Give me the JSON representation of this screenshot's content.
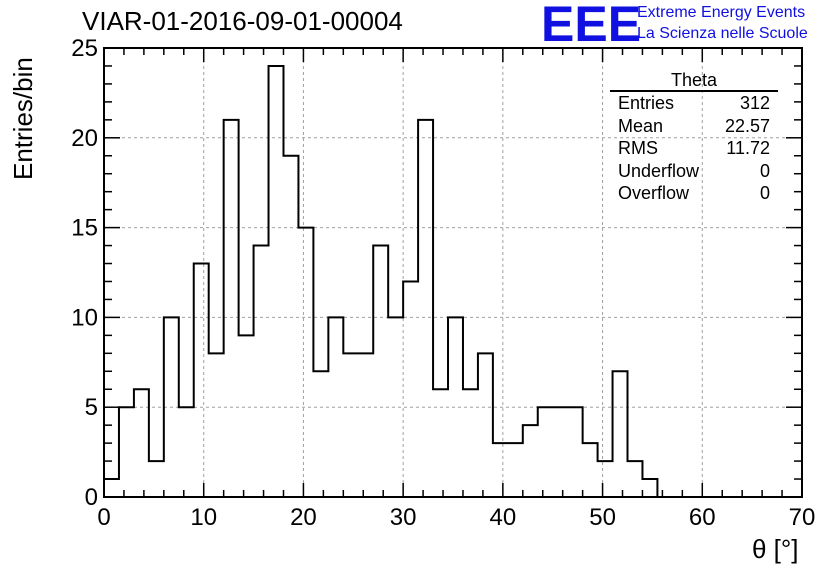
{
  "chart_data": {
    "type": "bar",
    "title": "VIAR-01-2016-09-01-00004",
    "xlabel": "θ [°]",
    "ylabel": "Entries/bin",
    "xlim": [
      0,
      70
    ],
    "ylim": [
      0,
      25
    ],
    "x_ticks": [
      "0",
      "10",
      "20",
      "30",
      "40",
      "50",
      "60",
      "70"
    ],
    "y_ticks": [
      "0",
      "5",
      "10",
      "15",
      "20",
      "25"
    ],
    "grid": true,
    "bin_width": 1.5,
    "bin_start": 0,
    "values": [
      1,
      5,
      6,
      2,
      10,
      5,
      13,
      8,
      21,
      9,
      14,
      24,
      19,
      15,
      7,
      10,
      8,
      8,
      14,
      10,
      12,
      21,
      6,
      10,
      6,
      8,
      3,
      3,
      4,
      5,
      5,
      5,
      3,
      2,
      7,
      2,
      1,
      0
    ],
    "stats_box": {
      "title": "Theta",
      "rows": [
        {
          "label": "Entries",
          "value": "312"
        },
        {
          "label": "Mean",
          "value": "22.57"
        },
        {
          "label": "RMS",
          "value": "11.72"
        },
        {
          "label": "Underflow",
          "value": "0"
        },
        {
          "label": "Overflow",
          "value": "0"
        }
      ]
    }
  },
  "logo": {
    "text": "EEE",
    "line1": "Extreme Energy Events",
    "line2": "La Scienza nelle Scuole",
    "color": "#1010e0"
  }
}
